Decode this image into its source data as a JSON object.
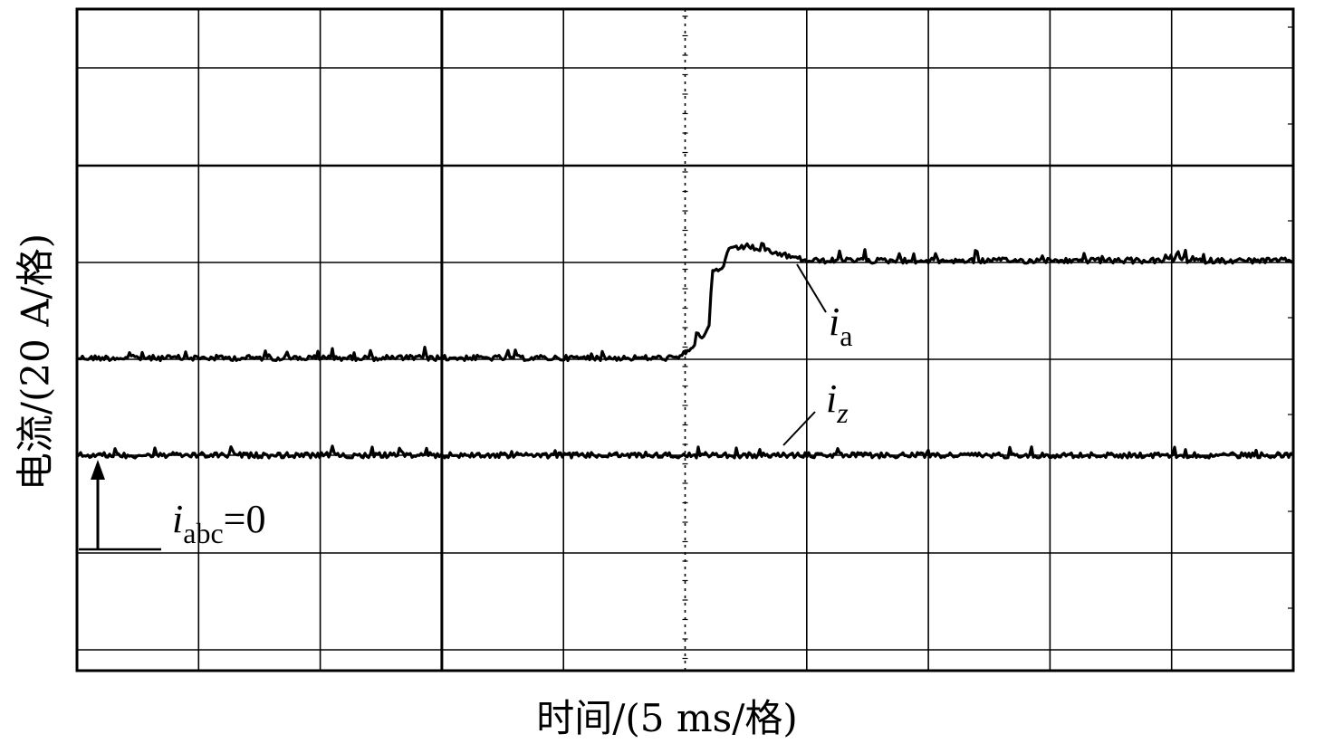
{
  "chart_data": {
    "type": "line",
    "xlabel": "时间/(5 ms/格)",
    "ylabel": "电流/(20 A/格)",
    "x_divisions": 10,
    "y_divisions": 7,
    "grid": true,
    "series": [
      {
        "name": "i_a",
        "label_main": "i",
        "label_sub": "a",
        "x": [
          0,
          4.95,
          5.0,
          5.2,
          5.22,
          5.3,
          5.35,
          5.5,
          6,
          7,
          8,
          9,
          10
        ],
        "y": [
          1.0,
          1.0,
          1.05,
          1.3,
          1.9,
          1.9,
          2.1,
          2.15,
          2.0,
          2.0,
          2.0,
          2.0,
          2.0
        ]
      },
      {
        "name": "i_z",
        "label_main": "i",
        "label_sub": "z",
        "x": [
          0,
          10
        ],
        "y": [
          0,
          0
        ]
      }
    ],
    "annotations": {
      "zero_marker": {
        "main": "i",
        "sub": "abc",
        "suffix": "=0"
      }
    }
  }
}
